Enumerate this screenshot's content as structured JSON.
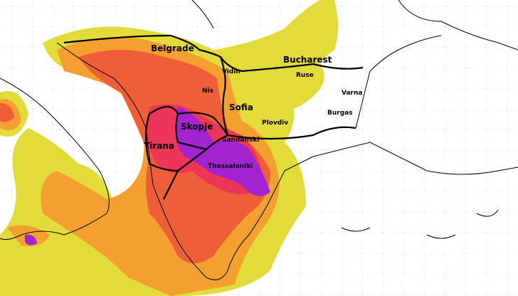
{
  "map": {
    "cities": [
      {
        "name": "Belgrade"
      },
      {
        "name": "Bucharest"
      },
      {
        "name": "Vidin"
      },
      {
        "name": "Ruse"
      },
      {
        "name": "Nis"
      },
      {
        "name": "Varna"
      },
      {
        "name": "Sofia"
      },
      {
        "name": "Burgas"
      },
      {
        "name": "Plovdiv"
      },
      {
        "name": "Skopje"
      },
      {
        "name": "Sandanski"
      },
      {
        "name": "Tirana"
      },
      {
        "name": "Thessaloniki"
      }
    ]
  }
}
